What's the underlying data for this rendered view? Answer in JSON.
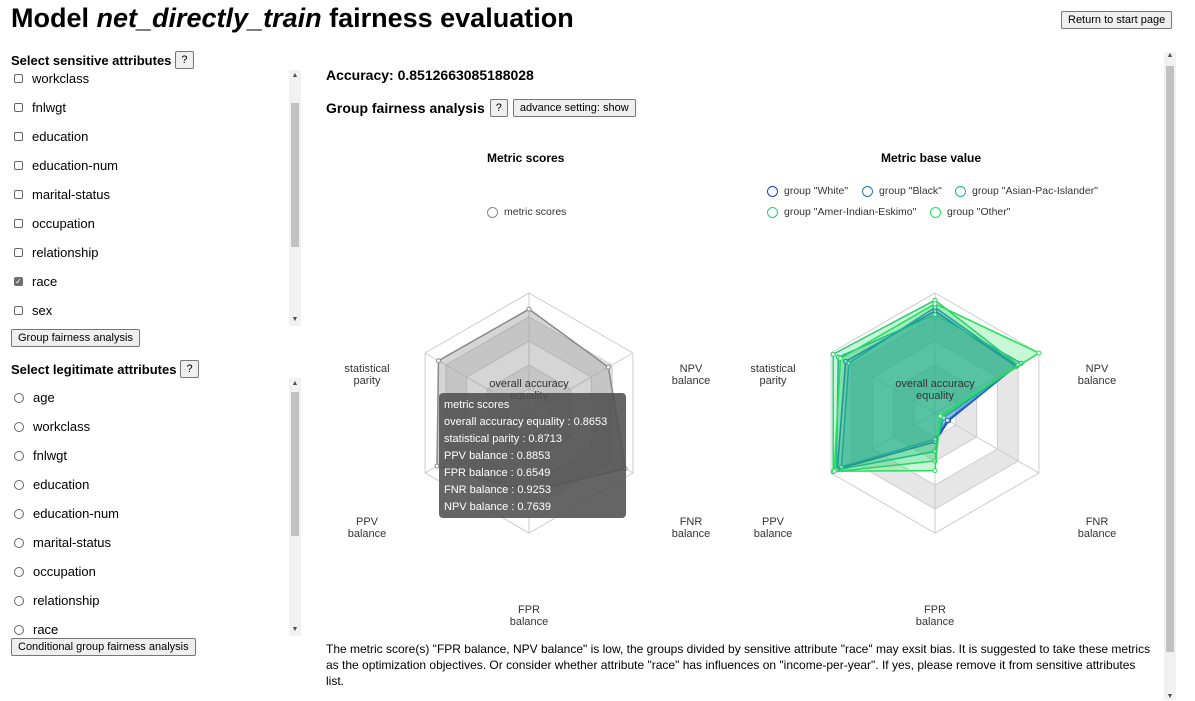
{
  "header": {
    "title_prefix": "Model ",
    "title_model": "net_directly_train",
    "title_suffix": " fairness evaluation",
    "return_label": "Return to start page"
  },
  "sidebar": {
    "sensitive_title": "Select sensitive attributes",
    "help_label": "?",
    "sensitive_items": [
      {
        "label": "workclass",
        "checked": false
      },
      {
        "label": "fnlwgt",
        "checked": false
      },
      {
        "label": "education",
        "checked": false
      },
      {
        "label": "education-num",
        "checked": false
      },
      {
        "label": "marital-status",
        "checked": false
      },
      {
        "label": "occupation",
        "checked": false
      },
      {
        "label": "relationship",
        "checked": false
      },
      {
        "label": "race",
        "checked": true
      },
      {
        "label": "sex",
        "checked": false
      }
    ],
    "group_btn": "Group fairness analysis",
    "legitimate_title": "Select legitimate attributes",
    "legitimate_items": [
      {
        "label": "age"
      },
      {
        "label": "workclass"
      },
      {
        "label": "fnlwgt"
      },
      {
        "label": "education"
      },
      {
        "label": "education-num"
      },
      {
        "label": "marital-status"
      },
      {
        "label": "occupation"
      },
      {
        "label": "relationship"
      },
      {
        "label": "race"
      }
    ],
    "conditional_btn": "Conditional group fairness analysis"
  },
  "main": {
    "accuracy_label": "Accuracy: 0.8512663085188028",
    "group_title": "Group fairness analysis",
    "advance_btn": "advance setting: show",
    "suggestion": "The metric score(s) \"FPR balance, NPV balance\" is low, the groups divided by sensitive attribute \"race\" may exsit bias. It is suggested to take these metrics as the optimization objectives. Or consider whether attribute \"race\" has influences on \"income-per-year\". If yes, please remove it from sensitive attributes list."
  },
  "tooltip": {
    "title": "metric scores",
    "lines": [
      "overall accuracy equality : 0.8653",
      "statistical parity : 0.8713",
      "PPV balance : 0.8853",
      "FPR balance : 0.6549",
      "FNR balance : 0.9253",
      "NPV balance : 0.7639"
    ]
  },
  "chart_data": [
    {
      "type": "radar",
      "title": "Metric scores",
      "axes": [
        {
          "top": "overall accuracy",
          "bottom": "equality"
        },
        {
          "top": "NPV",
          "bottom": "balance"
        },
        {
          "top": "FNR",
          "bottom": "balance"
        },
        {
          "top": "FPR",
          "bottom": "balance"
        },
        {
          "top": "PPV",
          "bottom": "balance"
        },
        {
          "top": "statistical",
          "bottom": "parity"
        }
      ],
      "max": 1,
      "series": [
        {
          "name": "metric scores",
          "color": "#888888",
          "values": [
            0.8653,
            0.7639,
            0.9253,
            0.6549,
            0.8853,
            0.8713
          ]
        }
      ]
    },
    {
      "type": "radar",
      "title": "Metric base value",
      "axes": [
        {
          "top": "overall accuracy",
          "bottom": "equality"
        },
        {
          "top": "NPV",
          "bottom": "balance"
        },
        {
          "top": "FNR",
          "bottom": "balance"
        },
        {
          "top": "FPR",
          "bottom": "balance"
        },
        {
          "top": "PPV",
          "bottom": "balance"
        },
        {
          "top": "statistical",
          "bottom": "parity"
        }
      ],
      "max": 1,
      "series": [
        {
          "name": "group \"White\"",
          "color": "#1a3fcc",
          "values": [
            0.85,
            0.78,
            0.13,
            0.24,
            0.94,
            0.86
          ]
        },
        {
          "name": "group \"Black\"",
          "color": "#1a79c2",
          "values": [
            0.88,
            0.79,
            0.12,
            0.22,
            0.9,
            0.83
          ]
        },
        {
          "name": "group \"Asian-Pac-Islander\"",
          "color": "#1aa8a0",
          "values": [
            0.82,
            0.83,
            0.08,
            0.32,
            0.95,
            0.93
          ]
        },
        {
          "name": "group \"Amer-Indian-Eskimo\"",
          "color": "#2ecc71",
          "values": [
            0.94,
            0.8,
            0.06,
            0.4,
            0.98,
            0.98
          ]
        },
        {
          "name": "group \"Other\"",
          "color": "#22e05a",
          "values": [
            0.91,
            1.0,
            0.05,
            0.48,
            0.97,
            0.91
          ]
        }
      ]
    }
  ]
}
